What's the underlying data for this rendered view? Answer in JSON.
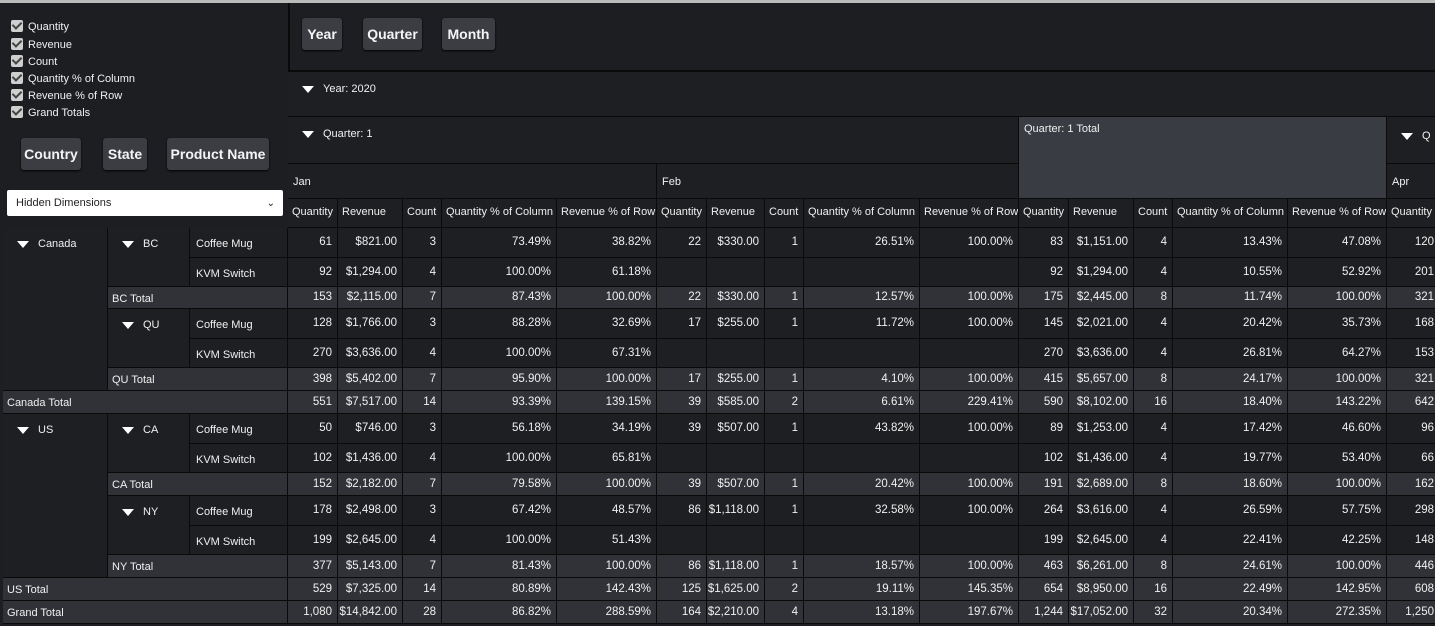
{
  "controls": {
    "measures": [
      "Quantity",
      "Revenue",
      "Count",
      "Quantity % of Column",
      "Revenue % of Row",
      "Grand Totals"
    ],
    "row_dimensions": [
      "Country",
      "State",
      "Product Name"
    ],
    "hidden_dimensions": "Hidden Dimensions",
    "column_dimensions": [
      "Year",
      "Quarter",
      "Month"
    ]
  },
  "table": {
    "year": "Year: 2020",
    "quarters": [
      "Quarter: 1",
      "Quarter: 1 Total",
      "Q"
    ],
    "months": [
      "Jan",
      "Feb",
      "Apr"
    ],
    "measures": [
      "Quantity",
      "Revenue",
      "Count",
      "Quantity % of Column",
      "Revenue % of Row",
      "Quantity",
      "Revenue",
      "Count",
      "Quantity % of Column",
      "Revenue % of Row",
      "Quantity",
      "Revenue",
      "Count",
      "Quantity % of Column",
      "Revenue % of Row",
      "Quantity"
    ],
    "row_groups": [
      {
        "label": "Canada",
        "states": [
          {
            "label": "BC",
            "products": [
              "Coffee Mug",
              "KVM Switch"
            ],
            "total": "BC Total"
          },
          {
            "label": "QU",
            "products": [
              "Coffee Mug",
              "KVM Switch"
            ],
            "total": "QU Total"
          }
        ],
        "total": "Canada Total"
      },
      {
        "label": "US",
        "states": [
          {
            "label": "CA",
            "products": [
              "Coffee Mug",
              "KVM Switch"
            ],
            "total": "CA Total"
          },
          {
            "label": "NY",
            "products": [
              "Coffee Mug",
              "KVM Switch"
            ],
            "total": "NY Total"
          }
        ],
        "total": "US Total"
      }
    ],
    "grand_total": "Grand Total",
    "rows": [
      [
        "61",
        "$821.00",
        "3",
        "73.49%",
        "38.82%",
        "22",
        "$330.00",
        "1",
        "26.51%",
        "100.00%",
        "83",
        "$1,151.00",
        "4",
        "13.43%",
        "47.08%",
        "120"
      ],
      [
        "92",
        "$1,294.00",
        "4",
        "100.00%",
        "61.18%",
        null,
        null,
        null,
        null,
        null,
        "92",
        "$1,294.00",
        "4",
        "10.55%",
        "52.92%",
        "201"
      ],
      [
        "153",
        "$2,115.00",
        "7",
        "87.43%",
        "100.00%",
        "22",
        "$330.00",
        "1",
        "12.57%",
        "100.00%",
        "175",
        "$2,445.00",
        "8",
        "11.74%",
        "100.00%",
        "321"
      ],
      [
        "128",
        "$1,766.00",
        "3",
        "88.28%",
        "32.69%",
        "17",
        "$255.00",
        "1",
        "11.72%",
        "100.00%",
        "145",
        "$2,021.00",
        "4",
        "20.42%",
        "35.73%",
        "168"
      ],
      [
        "270",
        "$3,636.00",
        "4",
        "100.00%",
        "67.31%",
        null,
        null,
        null,
        null,
        null,
        "270",
        "$3,636.00",
        "4",
        "26.81%",
        "64.27%",
        "153"
      ],
      [
        "398",
        "$5,402.00",
        "7",
        "95.90%",
        "100.00%",
        "17",
        "$255.00",
        "1",
        "4.10%",
        "100.00%",
        "415",
        "$5,657.00",
        "8",
        "24.17%",
        "100.00%",
        "321"
      ],
      [
        "551",
        "$7,517.00",
        "14",
        "93.39%",
        "139.15%",
        "39",
        "$585.00",
        "2",
        "6.61%",
        "229.41%",
        "590",
        "$8,102.00",
        "16",
        "18.40%",
        "143.22%",
        "642"
      ],
      [
        "50",
        "$746.00",
        "3",
        "56.18%",
        "34.19%",
        "39",
        "$507.00",
        "1",
        "43.82%",
        "100.00%",
        "89",
        "$1,253.00",
        "4",
        "17.42%",
        "46.60%",
        "96"
      ],
      [
        "102",
        "$1,436.00",
        "4",
        "100.00%",
        "65.81%",
        null,
        null,
        null,
        null,
        null,
        "102",
        "$1,436.00",
        "4",
        "19.77%",
        "53.40%",
        "66"
      ],
      [
        "152",
        "$2,182.00",
        "7",
        "79.58%",
        "100.00%",
        "39",
        "$507.00",
        "1",
        "20.42%",
        "100.00%",
        "191",
        "$2,689.00",
        "8",
        "18.60%",
        "100.00%",
        "162"
      ],
      [
        "178",
        "$2,498.00",
        "3",
        "67.42%",
        "48.57%",
        "86",
        "$1,118.00",
        "1",
        "32.58%",
        "100.00%",
        "264",
        "$3,616.00",
        "4",
        "26.59%",
        "57.75%",
        "298"
      ],
      [
        "199",
        "$2,645.00",
        "4",
        "100.00%",
        "51.43%",
        null,
        null,
        null,
        null,
        null,
        "199",
        "$2,645.00",
        "4",
        "22.41%",
        "42.25%",
        "148"
      ],
      [
        "377",
        "$5,143.00",
        "7",
        "81.43%",
        "100.00%",
        "86",
        "$1,118.00",
        "1",
        "18.57%",
        "100.00%",
        "463",
        "$6,261.00",
        "8",
        "24.61%",
        "100.00%",
        "446"
      ],
      [
        "529",
        "$7,325.00",
        "14",
        "80.89%",
        "142.43%",
        "125",
        "$1,625.00",
        "2",
        "19.11%",
        "145.35%",
        "654",
        "$8,950.00",
        "16",
        "22.49%",
        "142.95%",
        "608"
      ],
      [
        "1,080",
        "$14,842.00",
        "28",
        "86.82%",
        "288.59%",
        "164",
        "$2,210.00",
        "4",
        "13.18%",
        "197.67%",
        "1,244",
        "$17,052.00",
        "32",
        "20.34%",
        "272.35%",
        "1,250"
      ]
    ]
  }
}
